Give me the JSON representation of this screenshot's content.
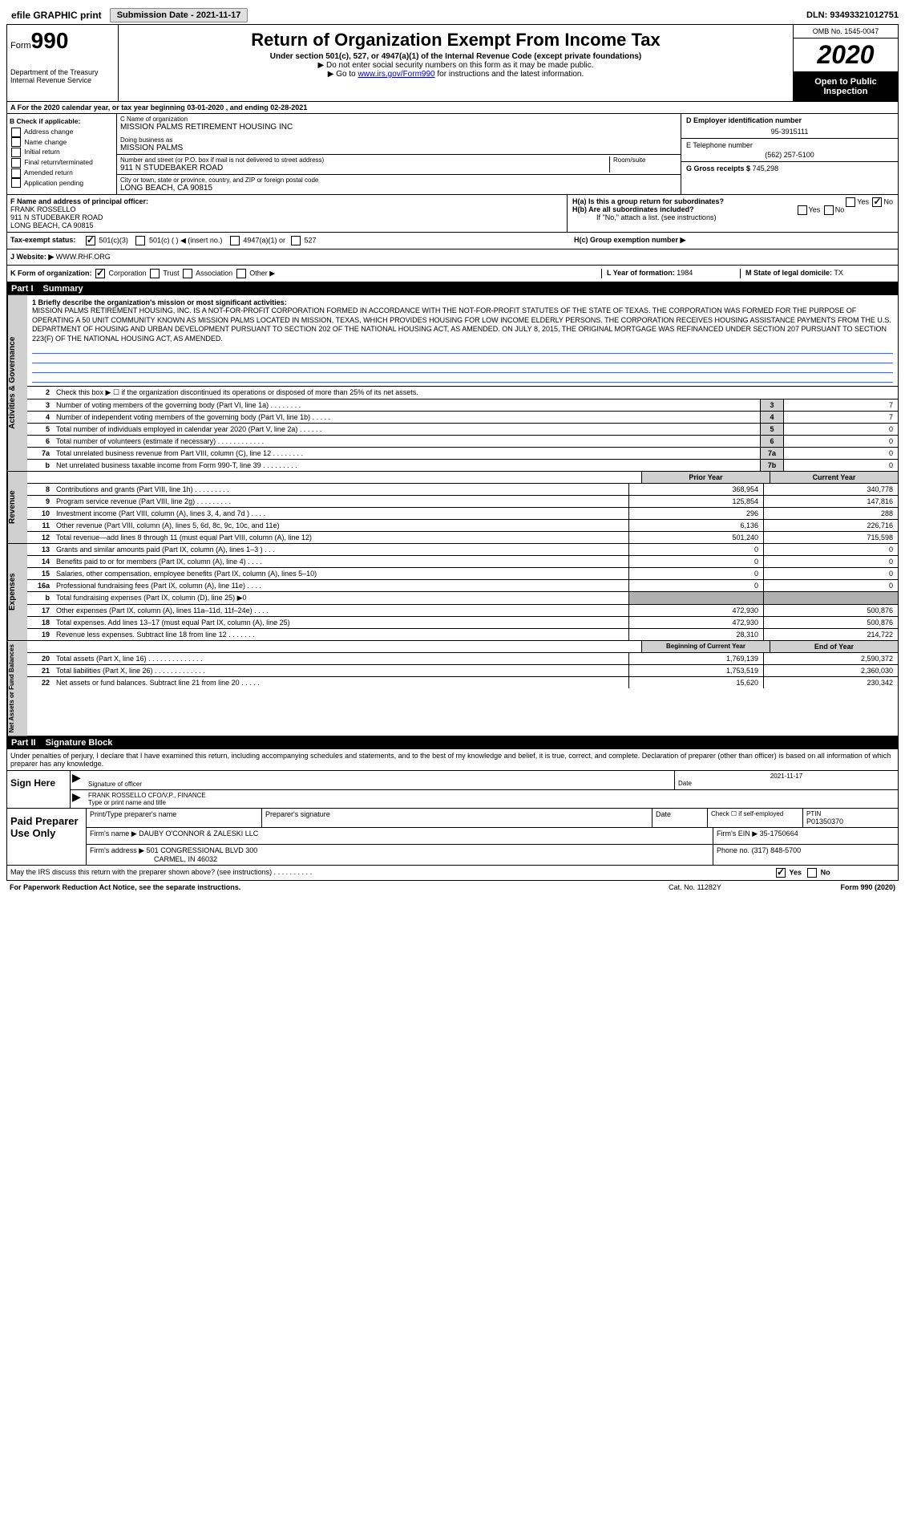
{
  "topbar": {
    "efile": "efile GRAPHIC print",
    "submission": "Submission Date - 2021-11-17",
    "dln": "DLN: 93493321012751"
  },
  "header": {
    "form_label": "Form",
    "form_num": "990",
    "dept": "Department of the Treasury\nInternal Revenue Service",
    "title": "Return of Organization Exempt From Income Tax",
    "sub": "Under section 501(c), 527, or 4947(a)(1) of the Internal Revenue Code (except private foundations)",
    "note1": "▶ Do not enter social security numbers on this form as it may be made public.",
    "note2_pre": "▶ Go to ",
    "note2_link": "www.irs.gov/Form990",
    "note2_post": " for instructions and the latest information.",
    "omb": "OMB No. 1545-0047",
    "year": "2020",
    "open": "Open to Public Inspection"
  },
  "period": "A For the 2020 calendar year, or tax year beginning 03-01-2020    , and ending 02-28-2021",
  "colB": {
    "label": "B Check if applicable:",
    "items": [
      "Address change",
      "Name change",
      "Initial return",
      "Final return/terminated",
      "Amended return",
      "Application pending"
    ]
  },
  "colC": {
    "name_label": "C Name of organization",
    "name": "MISSION PALMS RETIREMENT HOUSING INC",
    "dba_label": "Doing business as",
    "dba": "MISSION PALMS",
    "street_label": "Number and street (or P.O. box if mail is not delivered to street address)",
    "room_label": "Room/suite",
    "street": "911 N STUDEBAKER ROAD",
    "city_label": "City or town, state or province, country, and ZIP or foreign postal code",
    "city": "LONG BEACH, CA  90815"
  },
  "colD": {
    "d_label": "D Employer identification number",
    "d_val": "95-3915111",
    "e_label": "E Telephone number",
    "e_val": "(562) 257-5100",
    "g_label": "G Gross receipts $",
    "g_val": "745,298"
  },
  "rowF": {
    "label": "F  Name and address of principal officer:",
    "name": "FRANK ROSSELLO",
    "addr1": "911 N STUDEBAKER ROAD",
    "addr2": "LONG BEACH, CA  90815"
  },
  "rowH": {
    "ha": "H(a)  Is this a group return for subordinates?",
    "hb": "H(b)  Are all subordinates included?",
    "hb_note": "If \"No,\" attach a list. (see instructions)",
    "hc": "H(c)  Group exemption number ▶",
    "yes": "Yes",
    "no": "No"
  },
  "rowI": {
    "label": "Tax-exempt status:",
    "o1": "501(c)(3)",
    "o2": "501(c) (  ) ◀ (insert no.)",
    "o3": "4947(a)(1) or",
    "o4": "527"
  },
  "rowJ": {
    "label": "J   Website: ▶",
    "val": "WWW.RHF.ORG"
  },
  "rowK": {
    "label": "K Form of organization:",
    "o1": "Corporation",
    "o2": "Trust",
    "o3": "Association",
    "o4": "Other ▶",
    "l_label": "L Year of formation:",
    "l_val": "1984",
    "m_label": "M State of legal domicile:",
    "m_val": "TX"
  },
  "part1": {
    "label": "Part I",
    "title": "Summary"
  },
  "activities": {
    "side": "Activities & Governance",
    "l1": "1  Briefly describe the organization's mission or most significant activities:",
    "mission": "MISSION PALMS RETIREMENT HOUSING, INC. IS A NOT-FOR-PROFIT CORPORATION FORMED IN ACCORDANCE WITH THE NOT-FOR-PROFIT STATUTES OF THE STATE OF TEXAS. THE CORPORATION WAS FORMED FOR THE PURPOSE OF OPERATING A 50 UNIT COMMUNITY KNOWN AS MISSION PALMS LOCATED IN MISSION, TEXAS, WHICH PROVIDES HOUSING FOR LOW INCOME ELDERLY PERSONS. THE CORPORATION RECEIVES HOUSING ASSISTANCE PAYMENTS FROM THE U.S. DEPARTMENT OF HOUSING AND URBAN DEVELOPMENT PURSUANT TO SECTION 202 OF THE NATIONAL HOUSING ACT, AS AMENDED. ON JULY 8, 2015, THE ORIGINAL MORTGAGE WAS REFINANCED UNDER SECTION 207 PURSUANT TO SECTION 223(F) OF THE NATIONAL HOUSING ACT, AS AMENDED.",
    "l2": "Check this box ▶ ☐  if the organization discontinued its operations or disposed of more than 25% of its net assets.",
    "lines": [
      {
        "n": "3",
        "d": "Number of voting members of the governing body (Part VI, line 1a)  .    .    .    .    .    .    .    .",
        "b": "3",
        "v": "7"
      },
      {
        "n": "4",
        "d": "Number of independent voting members of the governing body (Part VI, line 1b)  .    .    .    .    .",
        "b": "4",
        "v": "7"
      },
      {
        "n": "5",
        "d": "Total number of individuals employed in calendar year 2020 (Part V, line 2a)  .    .    .    .    .    .",
        "b": "5",
        "v": "0"
      },
      {
        "n": "6",
        "d": "Total number of volunteers (estimate if necessary)  .    .    .    .    .    .    .    .    .    .    .    .",
        "b": "6",
        "v": "0"
      },
      {
        "n": "7a",
        "d": "Total unrelated business revenue from Part VIII, column (C), line 12  .    .    .    .    .    .    .    .",
        "b": "7a",
        "v": "0"
      },
      {
        "n": "b",
        "d": "Net unrelated business taxable income from Form 990-T, line 39  .    .    .    .    .    .    .    .    .",
        "b": "7b",
        "v": "0"
      }
    ]
  },
  "revenue": {
    "side": "Revenue",
    "h1": "Prior Year",
    "h2": "Current Year",
    "lines": [
      {
        "n": "8",
        "d": "Contributions and grants (Part VIII, line 1h)  .    .    .    .    .    .    .    .    .",
        "p": "368,954",
        "c": "340,778"
      },
      {
        "n": "9",
        "d": "Program service revenue (Part VIII, line 2g)  .    .    .    .    .    .    .    .    .",
        "p": "125,854",
        "c": "147,816"
      },
      {
        "n": "10",
        "d": "Investment income (Part VIII, column (A), lines 3, 4, and 7d )  .    .    .    .",
        "p": "296",
        "c": "288"
      },
      {
        "n": "11",
        "d": "Other revenue (Part VIII, column (A), lines 5, 6d, 8c, 9c, 10c, and 11e)",
        "p": "6,136",
        "c": "226,716"
      },
      {
        "n": "12",
        "d": "Total revenue—add lines 8 through 11 (must equal Part VIII, column (A), line 12)",
        "p": "501,240",
        "c": "715,598"
      }
    ]
  },
  "expenses": {
    "side": "Expenses",
    "lines": [
      {
        "n": "13",
        "d": "Grants and similar amounts paid (Part IX, column (A), lines 1–3 )  .    .    .",
        "p": "0",
        "c": "0"
      },
      {
        "n": "14",
        "d": "Benefits paid to or for members (Part IX, column (A), line 4)  .    .    .    .",
        "p": "0",
        "c": "0"
      },
      {
        "n": "15",
        "d": "Salaries, other compensation, employee benefits (Part IX, column (A), lines 5–10)",
        "p": "0",
        "c": "0"
      },
      {
        "n": "16a",
        "d": "Professional fundraising fees (Part IX, column (A), line 11e)  .    .    .    .",
        "p": "0",
        "c": "0"
      },
      {
        "n": "b",
        "d": "Total fundraising expenses (Part IX, column (D), line 25) ▶0",
        "p": "",
        "c": "",
        "shaded": true
      },
      {
        "n": "17",
        "d": "Other expenses (Part IX, column (A), lines 11a–11d, 11f–24e)  .    .    .    .",
        "p": "472,930",
        "c": "500,876"
      },
      {
        "n": "18",
        "d": "Total expenses. Add lines 13–17 (must equal Part IX, column (A), line 25)",
        "p": "472,930",
        "c": "500,876"
      },
      {
        "n": "19",
        "d": "Revenue less expenses. Subtract line 18 from line 12  .    .    .    .    .    .    .",
        "p": "28,310",
        "c": "214,722"
      }
    ]
  },
  "netassets": {
    "side": "Net Assets or Fund Balances",
    "h1": "Beginning of Current Year",
    "h2": "End of Year",
    "lines": [
      {
        "n": "20",
        "d": "Total assets (Part X, line 16)  .    .    .    .    .    .    .    .    .    .    .    .    .    .",
        "p": "1,769,139",
        "c": "2,590,372"
      },
      {
        "n": "21",
        "d": "Total liabilities (Part X, line 26)  .    .    .    .    .    .    .    .    .    .    .    .    .",
        "p": "1,753,519",
        "c": "2,360,030"
      },
      {
        "n": "22",
        "d": "Net assets or fund balances. Subtract line 21 from line 20  .    .    .    .    .",
        "p": "15,620",
        "c": "230,342"
      }
    ]
  },
  "part2": {
    "label": "Part II",
    "title": "Signature Block"
  },
  "perjury": "Under penalties of perjury, I declare that I have examined this return, including accompanying schedules and statements, and to the best of my knowledge and belief, it is true, correct, and complete. Declaration of preparer (other than officer) is based on all information of which preparer has any knowledge.",
  "sign": {
    "left": "Sign Here",
    "sig_label": "Signature of officer",
    "date_label": "Date",
    "date": "2021-11-17",
    "name": "FRANK ROSSELLO  CFO/V.P., FINANCE",
    "name_label": "Type or print name and title"
  },
  "prep": {
    "left": "Paid Preparer Use Only",
    "h1": "Print/Type preparer's name",
    "h2": "Preparer's signature",
    "h3": "Date",
    "h4_a": "Check ☐ if self-employed",
    "h4_b": "PTIN",
    "ptin": "P01350370",
    "firm_label": "Firm's name    ▶",
    "firm": "DAUBY O'CONNOR & ZALESKI LLC",
    "ein_label": "Firm's EIN ▶",
    "ein": "35-1750664",
    "addr_label": "Firm's address ▶",
    "addr1": "501 CONGRESSIONAL BLVD 300",
    "addr2": "CARMEL, IN  46032",
    "phone_label": "Phone no.",
    "phone": "(317) 848-5700"
  },
  "footer": {
    "discuss": "May the IRS discuss this return with the preparer shown above? (see instructions)  .    .    .    .    .    .    .    .    .    .",
    "yes": "Yes",
    "no": "No",
    "paperwork": "For Paperwork Reduction Act Notice, see the separate instructions.",
    "cat": "Cat. No. 11282Y",
    "form": "Form 990 (2020)"
  }
}
